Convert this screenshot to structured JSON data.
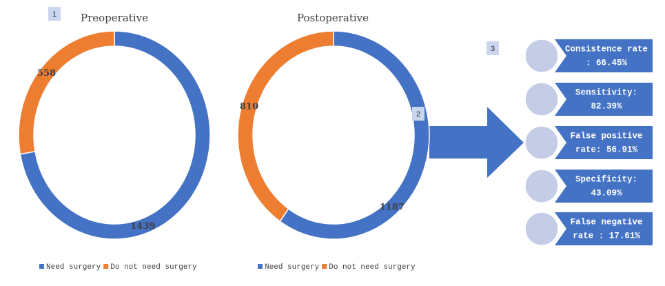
{
  "chart_data": [
    {
      "type": "pie",
      "title": "Preoperative",
      "categories": [
        "Need surgery",
        "Do not need surgery"
      ],
      "values": [
        1439,
        558
      ],
      "colors": [
        "#4472c4",
        "#ed7d31"
      ]
    },
    {
      "type": "pie",
      "title": "Postoperative",
      "categories": [
        "Need surgery",
        "Do not need surgery"
      ],
      "values": [
        1187,
        810
      ],
      "colors": [
        "#4472c4",
        "#ed7d31"
      ]
    }
  ],
  "badges": [
    "1",
    "2",
    "3"
  ],
  "metrics": [
    [
      "Consistence rate",
      ": 66.45%"
    ],
    [
      "Sensitivity:",
      "82.39%"
    ],
    [
      "False positive",
      "rate: 56.91%"
    ],
    [
      "Specificity:",
      "43.09%"
    ],
    [
      "False negative",
      "rate : 17.61%"
    ]
  ]
}
